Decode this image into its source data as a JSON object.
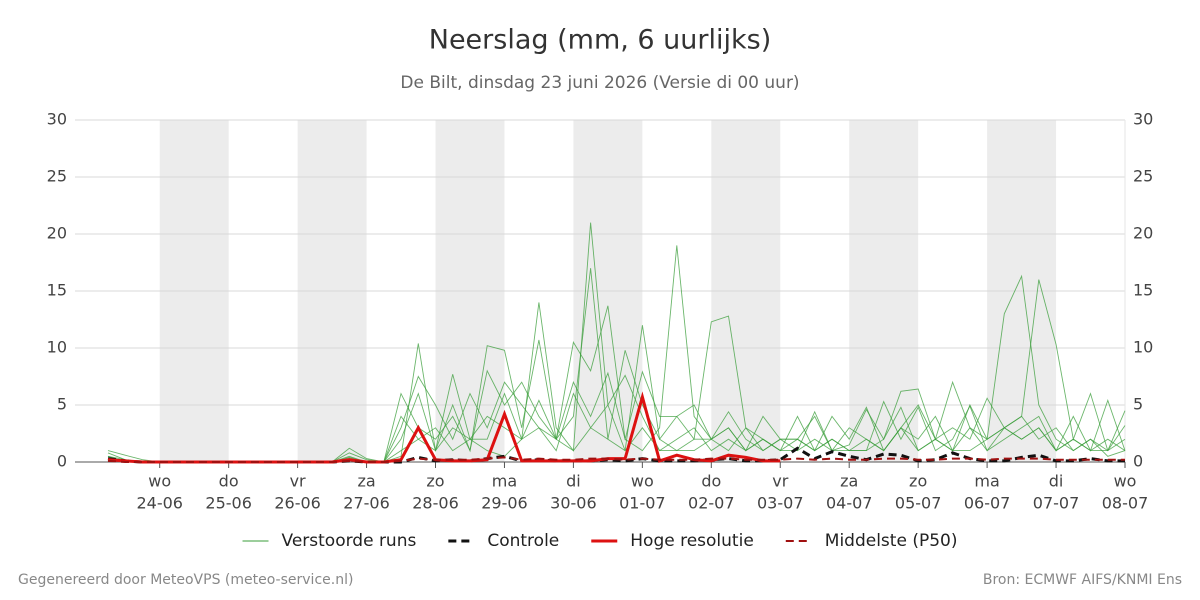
{
  "chart_data": {
    "type": "line",
    "title": "Neerslag (mm, 6 uurlijks)",
    "subtitle": "De Bilt, dinsdag 23 juni 2026 (Versie di 00 uur)",
    "footer_left": "Gegenereerd door MeteoVPS (meteo-service.nl)",
    "footer_right": "Bron: ECMWF AIFS/KNMI Ens",
    "categories": [
      null,
      null,
      null,
      "24-06",
      null,
      null,
      null,
      "25-06",
      null,
      null,
      null,
      "26-06",
      null,
      null,
      null,
      "27-06",
      null,
      null,
      null,
      "28-06",
      null,
      null,
      null,
      "29-06",
      null,
      null,
      null,
      "30-06",
      null,
      null,
      null,
      "01-07",
      null,
      null,
      null,
      "02-07",
      null,
      null,
      null,
      "03-07",
      null,
      null,
      null,
      "04-07",
      null,
      null,
      null,
      "05-07",
      null,
      null,
      null,
      "06-07",
      null,
      null,
      null,
      "07-07",
      null,
      null,
      null,
      "08-07"
    ],
    "weekdays": [
      null,
      null,
      null,
      "wo",
      null,
      null,
      null,
      "do",
      null,
      null,
      null,
      "vr",
      null,
      null,
      null,
      "za",
      null,
      null,
      null,
      "zo",
      null,
      null,
      null,
      "ma",
      null,
      null,
      null,
      "di",
      null,
      null,
      null,
      "wo",
      null,
      null,
      null,
      "do",
      null,
      null,
      null,
      "vr",
      null,
      null,
      null,
      "za",
      null,
      null,
      null,
      "zo",
      null,
      null,
      null,
      "ma",
      null,
      null,
      null,
      "di",
      null,
      null,
      null,
      "wo"
    ],
    "ylim": [
      0,
      30
    ],
    "yticks": [
      0,
      5,
      10,
      15,
      20,
      25,
      30
    ],
    "grid": true,
    "ensemble": {
      "name": "Verstoorde runs",
      "color": "#3a9e3a",
      "members": [
        [
          1,
          0.6,
          0.2,
          0,
          0,
          0,
          0,
          0,
          0,
          0,
          0,
          0,
          0,
          0,
          1.2,
          0.3,
          0,
          0.5,
          10.4,
          1,
          7.7,
          2,
          1,
          0.5,
          2,
          14,
          3,
          1,
          21,
          5,
          1,
          12,
          2,
          1,
          2,
          12.3,
          12.8,
          3,
          1,
          2,
          1,
          4.4,
          1,
          1.5,
          4.6,
          2,
          6.2,
          6.4,
          2,
          7,
          3,
          2,
          13,
          16.3,
          5,
          2,
          1,
          2,
          0.5,
          1
        ],
        [
          0.8,
          0.2,
          0,
          0,
          0,
          0,
          0,
          0,
          0,
          0,
          0,
          0,
          0,
          0,
          0.8,
          0.2,
          0,
          2,
          6,
          1,
          5,
          1,
          10.2,
          9.8,
          3,
          10.7,
          2,
          10.5,
          8,
          13.7,
          2,
          1,
          3,
          19,
          4,
          2,
          3,
          1,
          4,
          2,
          2,
          1,
          4,
          2,
          4.8,
          1,
          3,
          2,
          4,
          1,
          5,
          2,
          3,
          4,
          16,
          10.3,
          2,
          6,
          1,
          2
        ],
        [
          0.5,
          0,
          0,
          0,
          0,
          0,
          0,
          0,
          0,
          0,
          0,
          0,
          0,
          0,
          0.5,
          0,
          0,
          6,
          3,
          2,
          4,
          1,
          8,
          5,
          7,
          4,
          2,
          4,
          17,
          2,
          9.8,
          5,
          2,
          4,
          5,
          2,
          1,
          3,
          2,
          1,
          4,
          1,
          2,
          1,
          1,
          5.3,
          2,
          4.8,
          1,
          2,
          4.9,
          1,
          3,
          2,
          3,
          1,
          4,
          1,
          5.4,
          1
        ],
        [
          0.3,
          0,
          0,
          0,
          0,
          0,
          0,
          0,
          0,
          0,
          0,
          0,
          0,
          0,
          0.3,
          0,
          0,
          3,
          7.5,
          5,
          2,
          6,
          3,
          7,
          5,
          3,
          2,
          7,
          4,
          7.8,
          2,
          7.9,
          4,
          4,
          2,
          2,
          4.4,
          2,
          1,
          2,
          2,
          4,
          1,
          3,
          2,
          1,
          3,
          5,
          2,
          3,
          2,
          5.6,
          3,
          4,
          2,
          3,
          1,
          2,
          1,
          4.5
        ],
        [
          0.5,
          0.2,
          0,
          0,
          0,
          0,
          0,
          0,
          0,
          0,
          0,
          0,
          0,
          0,
          0.2,
          0,
          0,
          1,
          2,
          3,
          1,
          2,
          4,
          3,
          2,
          5.4,
          2,
          1,
          3,
          2,
          1,
          3,
          1,
          1,
          1,
          2,
          3,
          1,
          2,
          1,
          1,
          2,
          1,
          1,
          2,
          1,
          3,
          1,
          2,
          1,
          1,
          2,
          3,
          2,
          3,
          1,
          2,
          1,
          1,
          3.2
        ],
        [
          0.2,
          0,
          0,
          0,
          0,
          0,
          0,
          0,
          0,
          0,
          0,
          0,
          0,
          0,
          0.4,
          0,
          0,
          4,
          2,
          1,
          3,
          2,
          2,
          6,
          2,
          3,
          1,
          6,
          3,
          5,
          7.6,
          4,
          1,
          2,
          3,
          1,
          2,
          1,
          2,
          1,
          2,
          1,
          2,
          1,
          1,
          2,
          4.8,
          1,
          2,
          1,
          3,
          1,
          2,
          3,
          4,
          1,
          2,
          1,
          2,
          1
        ]
      ]
    },
    "series": [
      {
        "name": "Controle",
        "color": "#111111",
        "dash": true,
        "width": 3,
        "values": [
          0.3,
          0.1,
          0,
          0,
          0,
          0,
          0,
          0,
          0,
          0,
          0,
          0,
          0,
          0,
          0.1,
          0,
          0,
          0,
          0.4,
          0.1,
          0.2,
          0.1,
          0.3,
          0.5,
          0.1,
          0.2,
          0.1,
          0.1,
          0.1,
          0.2,
          0.1,
          0.3,
          0.1,
          0.1,
          0.1,
          0.2,
          0.3,
          0.1,
          0.1,
          0.2,
          1.2,
          0.3,
          0.9,
          0.5,
          0.2,
          0.7,
          0.6,
          0.1,
          0.2,
          0.8,
          0.3,
          0.1,
          0.1,
          0.4,
          0.6,
          0.1,
          0.1,
          0.3,
          0.1,
          0.1
        ]
      },
      {
        "name": "Hoge resolutie",
        "color": "#dd1111",
        "dash": false,
        "width": 3,
        "values": [
          0.2,
          0.1,
          0,
          0,
          0,
          0,
          0,
          0,
          0,
          0,
          0,
          0,
          0,
          0,
          0.2,
          0,
          0,
          0.2,
          3,
          0.2,
          0.1,
          0.1,
          0.2,
          4.2,
          0.1,
          0.1,
          0.1,
          0.1,
          0.1,
          0.3,
          0.3,
          5.7,
          0.1,
          0.6,
          0.2,
          0.1,
          0.6,
          0.4,
          0.1,
          0.1,
          null,
          null,
          null,
          null,
          null,
          null,
          null,
          null,
          null,
          null,
          null,
          null,
          null,
          null,
          null,
          null,
          null,
          null,
          null,
          null
        ]
      },
      {
        "name": "Middelste (P50)",
        "color": "#a01010",
        "dash": true,
        "width": 2,
        "values": [
          0.1,
          0,
          0,
          0,
          0,
          0,
          0,
          0,
          0,
          0,
          0,
          0,
          0,
          0,
          0.1,
          0,
          0,
          0.1,
          0.3,
          0.2,
          0.2,
          0.2,
          0.3,
          0.4,
          0.2,
          0.3,
          0.2,
          0.2,
          0.3,
          0.3,
          0.2,
          0.3,
          0.2,
          0.2,
          0.2,
          0.3,
          0.3,
          0.2,
          0.2,
          0.2,
          0.3,
          0.2,
          0.3,
          0.2,
          0.2,
          0.3,
          0.3,
          0.2,
          0.2,
          0.3,
          0.3,
          0.2,
          0.3,
          0.3,
          0.3,
          0.2,
          0.2,
          0.2,
          0.2,
          0.2
        ]
      }
    ]
  }
}
